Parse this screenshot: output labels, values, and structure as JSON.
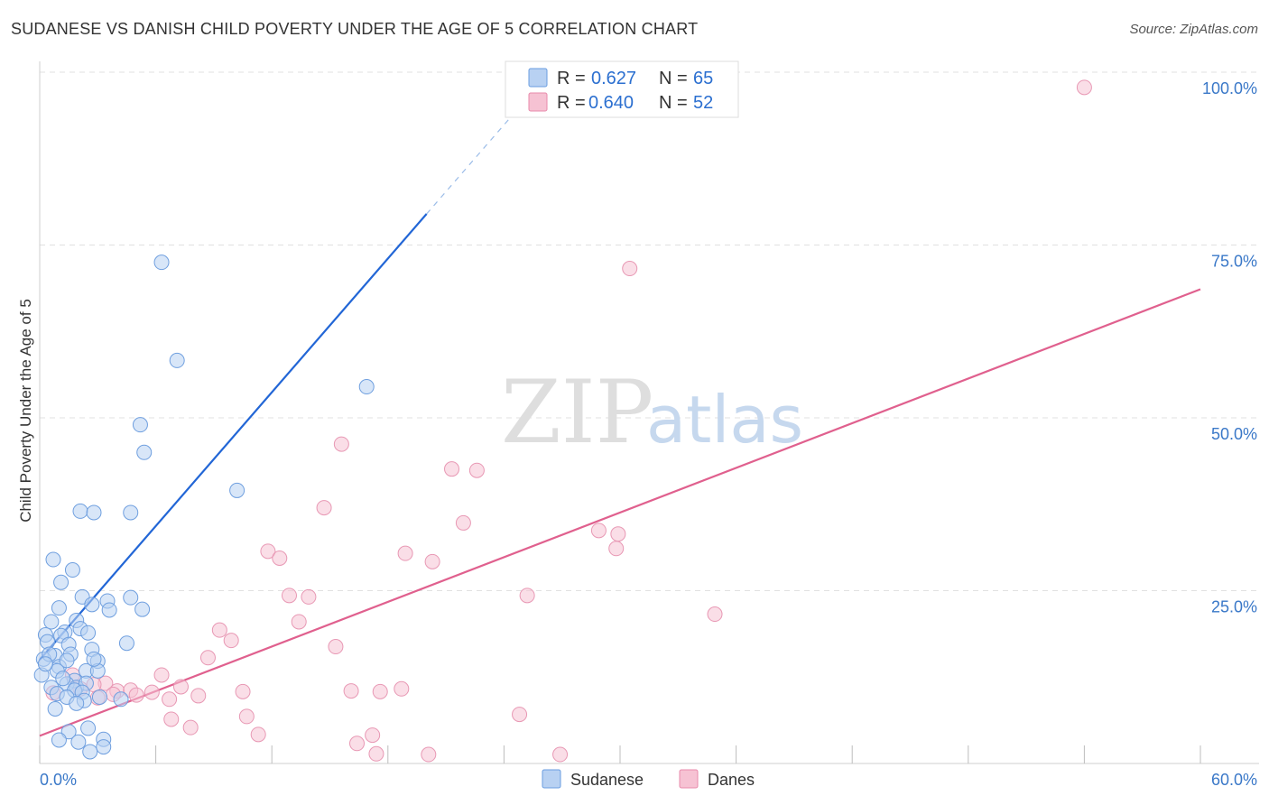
{
  "title": "SUDANESE VS DANISH CHILD POVERTY UNDER THE AGE OF 5 CORRELATION CHART",
  "source": "Source: ZipAtlas.com",
  "watermark": {
    "zip": "ZIP",
    "atlas": "atlas"
  },
  "colors": {
    "sudanese": "#2266d6",
    "sudanese_fill": "#b8d1f2",
    "danes": "#e0608e",
    "danes_fill": "#f6c2d3",
    "tick": "#3a78c8",
    "grid": "#e1e1e1"
  },
  "legend": {
    "r_label": "R =",
    "n_label": "N =",
    "sudanese": {
      "r": "0.627",
      "n": "65"
    },
    "danes": {
      "r": "0.640",
      "n": "52"
    }
  },
  "bottom_legend": [
    "Sudanese",
    "Danes"
  ],
  "chart_data": {
    "type": "scatter",
    "xlabel": "",
    "ylabel": "Child Poverty Under the Age of 5",
    "xlim": [
      0,
      60
    ],
    "ylim": [
      0,
      100
    ],
    "x_tick_labels": [
      "0.0%",
      "60.0%"
    ],
    "y_tick_labels": [
      "25.0%",
      "50.0%",
      "75.0%",
      "100.0%"
    ],
    "y_ticks": [
      25,
      50,
      75,
      100
    ],
    "x_minor_ticks": [
      0,
      6,
      12,
      18,
      24,
      30,
      36,
      42,
      48,
      54,
      60
    ],
    "grid": true,
    "series": [
      {
        "name": "Sudanese",
        "trend": {
          "x": [
            0.0,
            20.0
          ],
          "y": [
            15.0,
            79.5
          ]
        },
        "trend_dashed": {
          "x": [
            20.0,
            25.0
          ],
          "y": [
            79.5,
            95.6
          ]
        },
        "points": [
          [
            6.3,
            72.5
          ],
          [
            7.1,
            58.3
          ],
          [
            16.9,
            54.5
          ],
          [
            5.2,
            49.0
          ],
          [
            5.4,
            45.0
          ],
          [
            10.2,
            39.5
          ],
          [
            2.1,
            36.5
          ],
          [
            2.8,
            36.3
          ],
          [
            4.7,
            36.3
          ],
          [
            0.7,
            29.5
          ],
          [
            1.7,
            28.0
          ],
          [
            1.1,
            26.2
          ],
          [
            2.2,
            24.1
          ],
          [
            3.5,
            23.5
          ],
          [
            4.7,
            24.0
          ],
          [
            1.0,
            22.5
          ],
          [
            2.7,
            23.0
          ],
          [
            3.6,
            22.2
          ],
          [
            5.3,
            22.3
          ],
          [
            0.6,
            20.5
          ],
          [
            1.9,
            20.7
          ],
          [
            1.3,
            19.0
          ],
          [
            2.1,
            19.5
          ],
          [
            0.3,
            18.6
          ],
          [
            1.1,
            18.5
          ],
          [
            2.5,
            18.9
          ],
          [
            0.4,
            17.6
          ],
          [
            1.5,
            17.2
          ],
          [
            2.7,
            16.5
          ],
          [
            0.8,
            15.6
          ],
          [
            1.6,
            15.8
          ],
          [
            0.2,
            15.1
          ],
          [
            0.5,
            15.8
          ],
          [
            1.0,
            14.0
          ],
          [
            1.4,
            14.9
          ],
          [
            3.0,
            14.8
          ],
          [
            0.9,
            13.4
          ],
          [
            2.4,
            13.4
          ],
          [
            3.0,
            13.4
          ],
          [
            1.8,
            12.0
          ],
          [
            4.5,
            17.4
          ],
          [
            0.6,
            11.0
          ],
          [
            1.4,
            11.5
          ],
          [
            1.9,
            11.0
          ],
          [
            2.4,
            11.6
          ],
          [
            0.9,
            10.1
          ],
          [
            1.8,
            10.6
          ],
          [
            2.2,
            10.3
          ],
          [
            3.1,
            9.6
          ],
          [
            2.3,
            9.1
          ],
          [
            1.4,
            9.6
          ],
          [
            1.9,
            8.7
          ],
          [
            0.8,
            7.9
          ],
          [
            1.5,
            4.6
          ],
          [
            2.5,
            5.1
          ],
          [
            1.0,
            3.4
          ],
          [
            2.0,
            3.1
          ],
          [
            3.3,
            3.5
          ],
          [
            3.3,
            2.4
          ],
          [
            2.6,
            1.7
          ],
          [
            0.1,
            12.8
          ],
          [
            0.3,
            14.4
          ],
          [
            4.2,
            9.3
          ],
          [
            1.2,
            12.3
          ],
          [
            2.8,
            15.1
          ]
        ]
      },
      {
        "name": "Danes",
        "trend": {
          "x": [
            0.0,
            60.0
          ],
          "y": [
            4.0,
            68.6
          ]
        },
        "points": [
          [
            54.0,
            97.8
          ],
          [
            30.5,
            71.6
          ],
          [
            15.6,
            46.2
          ],
          [
            21.3,
            42.6
          ],
          [
            22.6,
            42.4
          ],
          [
            14.7,
            37.0
          ],
          [
            21.9,
            34.8
          ],
          [
            28.9,
            33.7
          ],
          [
            29.9,
            33.2
          ],
          [
            29.8,
            31.1
          ],
          [
            11.8,
            30.7
          ],
          [
            12.4,
            29.7
          ],
          [
            18.9,
            30.4
          ],
          [
            20.3,
            29.2
          ],
          [
            12.9,
            24.3
          ],
          [
            13.9,
            24.1
          ],
          [
            25.2,
            24.3
          ],
          [
            34.9,
            21.6
          ],
          [
            13.4,
            20.5
          ],
          [
            9.3,
            19.3
          ],
          [
            9.9,
            17.8
          ],
          [
            15.3,
            16.9
          ],
          [
            8.7,
            15.3
          ],
          [
            6.3,
            12.8
          ],
          [
            7.3,
            11.1
          ],
          [
            3.4,
            11.6
          ],
          [
            1.7,
            12.8
          ],
          [
            2.8,
            11.4
          ],
          [
            2.1,
            10.8
          ],
          [
            4.0,
            10.5
          ],
          [
            4.7,
            10.6
          ],
          [
            5.8,
            10.3
          ],
          [
            10.5,
            10.4
          ],
          [
            16.1,
            10.5
          ],
          [
            17.6,
            10.4
          ],
          [
            18.7,
            10.8
          ],
          [
            8.2,
            9.8
          ],
          [
            5.0,
            9.9
          ],
          [
            3.8,
            10.0
          ],
          [
            6.7,
            9.3
          ],
          [
            0.7,
            10.2
          ],
          [
            3.0,
            9.5
          ],
          [
            10.7,
            6.8
          ],
          [
            24.8,
            7.1
          ],
          [
            6.8,
            6.4
          ],
          [
            7.8,
            5.2
          ],
          [
            11.3,
            4.2
          ],
          [
            17.2,
            4.1
          ],
          [
            16.4,
            2.9
          ],
          [
            17.4,
            1.4
          ],
          [
            20.1,
            1.3
          ],
          [
            26.9,
            1.3
          ]
        ]
      }
    ]
  }
}
